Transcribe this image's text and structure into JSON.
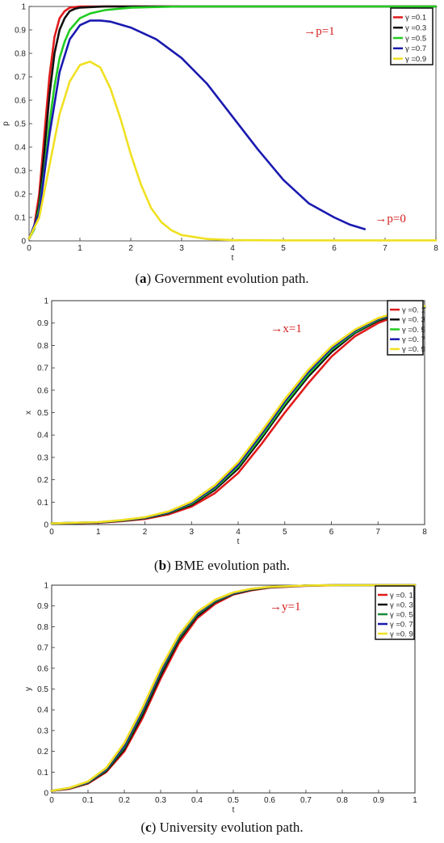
{
  "panels": [
    {
      "id": "a",
      "caption_letter": "a",
      "caption_text": " Government evolution path.",
      "chart_data": {
        "type": "line",
        "xlabel": "t",
        "ylabel": "p",
        "xlim": [
          0,
          8
        ],
        "ylim": [
          0,
          1
        ],
        "xticks": [
          "0",
          "1",
          "2",
          "3",
          "4",
          "5",
          "6",
          "7",
          "8"
        ],
        "yticks": [
          "0",
          "0.1",
          "0.2",
          "0.3",
          "0.4",
          "0.5",
          "0.6",
          "0.7",
          "0.8",
          "0.9",
          "1"
        ],
        "legend_position": "top-right",
        "annotations": [
          {
            "text": "→p=1",
            "x": 5.4,
            "y": 0.88
          },
          {
            "text": "→p=0",
            "x": 6.8,
            "y": 0.08
          }
        ],
        "series": [
          {
            "name": "γ =0.1",
            "color": "#e01b1b",
            "x": [
              0,
              0.1,
              0.2,
              0.3,
              0.4,
              0.5,
              0.6,
              0.7,
              0.8,
              1.0,
              1.5,
              2,
              4,
              8
            ],
            "y": [
              0.01,
              0.06,
              0.2,
              0.45,
              0.7,
              0.87,
              0.95,
              0.98,
              0.995,
              1,
              1,
              1,
              1,
              1
            ]
          },
          {
            "name": "γ =0.3",
            "color": "#111111",
            "x": [
              0,
              0.1,
              0.2,
              0.3,
              0.4,
              0.5,
              0.6,
              0.7,
              0.8,
              0.9,
              1.0,
              1.5,
              2,
              4,
              8
            ],
            "y": [
              0.01,
              0.05,
              0.16,
              0.38,
              0.62,
              0.8,
              0.9,
              0.95,
              0.98,
              0.99,
              0.995,
              1,
              1,
              1,
              1
            ]
          },
          {
            "name": "γ =0.5",
            "color": "#22cc22",
            "x": [
              0,
              0.1,
              0.2,
              0.3,
              0.4,
              0.5,
              0.6,
              0.7,
              0.8,
              1.0,
              1.2,
              1.5,
              2,
              3,
              4,
              8
            ],
            "y": [
              0.01,
              0.05,
              0.14,
              0.3,
              0.5,
              0.66,
              0.78,
              0.85,
              0.9,
              0.95,
              0.97,
              0.985,
              0.995,
              1,
              1,
              1
            ]
          },
          {
            "name": "γ =0.7",
            "color": "#1a1ab0",
            "x": [
              0,
              0.2,
              0.4,
              0.6,
              0.8,
              1.0,
              1.2,
              1.4,
              1.6,
              2.0,
              2.5,
              3.0,
              3.5,
              4.0,
              4.5,
              5.0,
              5.5,
              6.0,
              6.3,
              6.6
            ],
            "y": [
              0.01,
              0.12,
              0.45,
              0.72,
              0.86,
              0.92,
              0.94,
              0.94,
              0.935,
              0.91,
              0.86,
              0.78,
              0.67,
              0.53,
              0.39,
              0.26,
              0.16,
              0.1,
              0.07,
              0.05
            ]
          },
          {
            "name": "γ =0.9",
            "color": "#f0e020",
            "x": [
              0,
              0.2,
              0.4,
              0.6,
              0.8,
              1.0,
              1.2,
              1.4,
              1.6,
              1.8,
              2.0,
              2.2,
              2.4,
              2.6,
              2.8,
              3.0,
              3.5,
              4.0,
              5,
              8
            ],
            "y": [
              0.01,
              0.1,
              0.32,
              0.54,
              0.68,
              0.75,
              0.765,
              0.74,
              0.65,
              0.52,
              0.37,
              0.24,
              0.14,
              0.08,
              0.045,
              0.025,
              0.008,
              0.003,
              0.002,
              0.002
            ]
          }
        ]
      }
    },
    {
      "id": "b",
      "caption_letter": "b",
      "caption_text": " BME evolution path.",
      "chart_data": {
        "type": "line",
        "xlabel": "t",
        "ylabel": "x",
        "xlim": [
          0,
          8
        ],
        "ylim": [
          0,
          1
        ],
        "xticks": [
          "0",
          "1",
          "2",
          "3",
          "4",
          "5",
          "6",
          "7",
          "8"
        ],
        "yticks": [
          "0",
          "0.1",
          "0.2",
          "0.3",
          "0.4",
          "0.5",
          "0.6",
          "0.7",
          "0.8",
          "0.9",
          "1"
        ],
        "legend_position": "top-right",
        "annotations": [
          {
            "text": "→x=1",
            "x": 4.7,
            "y": 0.86
          }
        ],
        "series": [
          {
            "name": "γ =0. 1",
            "color": "#e01b1b",
            "x": [
              0,
              1,
              1.5,
              2,
              2.5,
              3,
              3.5,
              4,
              4.5,
              5,
              5.5,
              6,
              6.5,
              7,
              7.5,
              8
            ],
            "y": [
              0.005,
              0.008,
              0.015,
              0.025,
              0.045,
              0.08,
              0.14,
              0.23,
              0.36,
              0.5,
              0.63,
              0.75,
              0.84,
              0.9,
              0.94,
              0.97
            ]
          },
          {
            "name": "γ =0. 3",
            "color": "#111111",
            "x": [
              0,
              1,
              1.5,
              2,
              2.5,
              3,
              3.5,
              4,
              4.5,
              5,
              5.5,
              6,
              6.5,
              7,
              7.5,
              8
            ],
            "y": [
              0.005,
              0.009,
              0.017,
              0.028,
              0.05,
              0.088,
              0.155,
              0.25,
              0.385,
              0.53,
              0.66,
              0.77,
              0.855,
              0.91,
              0.945,
              0.97
            ]
          },
          {
            "name": "γ =0. 5",
            "color": "#22cc22",
            "x": [
              0,
              1,
              1.5,
              2,
              2.5,
              3,
              3.5,
              4,
              4.5,
              5,
              5.5,
              6,
              6.5,
              7,
              7.5,
              8
            ],
            "y": [
              0.005,
              0.01,
              0.018,
              0.03,
              0.053,
              0.093,
              0.162,
              0.26,
              0.395,
              0.54,
              0.67,
              0.78,
              0.86,
              0.915,
              0.948,
              0.972
            ]
          },
          {
            "name": "γ =0. 7",
            "color": "#1a1ab0",
            "x": [
              0,
              1,
              1.5,
              2,
              2.5,
              3,
              3.5,
              4,
              4.5,
              5,
              5.5,
              6,
              6.5,
              7,
              7.5,
              8
            ],
            "y": [
              0.005,
              0.01,
              0.019,
              0.031,
              0.055,
              0.097,
              0.168,
              0.268,
              0.405,
              0.55,
              0.68,
              0.787,
              0.865,
              0.918,
              0.95,
              0.973
            ]
          },
          {
            "name": "γ =0. 9",
            "color": "#f0e020",
            "x": [
              0,
              1,
              1.5,
              2,
              2.5,
              3,
              3.5,
              4,
              4.5,
              5,
              5.5,
              6,
              6.5,
              7,
              7.5,
              8
            ],
            "y": [
              0.005,
              0.011,
              0.02,
              0.033,
              0.058,
              0.102,
              0.175,
              0.278,
              0.415,
              0.56,
              0.69,
              0.795,
              0.87,
              0.922,
              0.953,
              0.975
            ]
          }
        ]
      }
    },
    {
      "id": "c",
      "caption_letter": "c",
      "caption_text": " University evolution path.",
      "chart_data": {
        "type": "line",
        "xlabel": "t",
        "ylabel": "y",
        "xlim": [
          0,
          1
        ],
        "ylim": [
          0,
          1
        ],
        "xticks": [
          "0",
          "0.1",
          "0.2",
          "0.3",
          "0.4",
          "0.5",
          "0.6",
          "0.7",
          "0.8",
          "0.9",
          "1"
        ],
        "yticks": [
          "0",
          "0.1",
          "0.2",
          "0.3",
          "0.4",
          "0.5",
          "0.6",
          "0.7",
          "0.8",
          "0.9",
          "1"
        ],
        "legend_position": "top-right",
        "annotations": [
          {
            "text": "→y=1",
            "x": 0.6,
            "y": 0.88
          }
        ],
        "series": [
          {
            "name": "γ =0. 1",
            "color": "#e01b1b",
            "x": [
              0,
              0.05,
              0.1,
              0.15,
              0.2,
              0.25,
              0.3,
              0.35,
              0.4,
              0.45,
              0.5,
              0.55,
              0.6,
              0.7,
              0.8,
              1.0
            ],
            "y": [
              0.01,
              0.02,
              0.045,
              0.1,
              0.2,
              0.36,
              0.55,
              0.72,
              0.84,
              0.91,
              0.955,
              0.975,
              0.988,
              0.997,
              1,
              1
            ]
          },
          {
            "name": "γ =0. 3",
            "color": "#111111",
            "x": [
              0,
              0.05,
              0.1,
              0.15,
              0.2,
              0.25,
              0.3,
              0.35,
              0.4,
              0.45,
              0.5,
              0.55,
              0.6,
              0.7,
              0.8,
              1.0
            ],
            "y": [
              0.01,
              0.022,
              0.048,
              0.105,
              0.21,
              0.375,
              0.565,
              0.735,
              0.85,
              0.918,
              0.958,
              0.978,
              0.99,
              0.998,
              1,
              1
            ]
          },
          {
            "name": "γ =0. 5",
            "color": "#1a8a3a",
            "x": [
              0,
              0.05,
              0.1,
              0.15,
              0.2,
              0.25,
              0.3,
              0.35,
              0.4,
              0.45,
              0.5,
              0.55,
              0.6,
              0.7,
              0.8,
              1.0
            ],
            "y": [
              0.01,
              0.023,
              0.05,
              0.11,
              0.22,
              0.39,
              0.58,
              0.745,
              0.858,
              0.922,
              0.96,
              0.98,
              0.99,
              0.998,
              1,
              1
            ]
          },
          {
            "name": "γ =0. 7",
            "color": "#1a1ab0",
            "x": [
              0,
              0.05,
              0.1,
              0.15,
              0.2,
              0.25,
              0.3,
              0.35,
              0.4,
              0.45,
              0.5,
              0.55,
              0.6,
              0.7,
              0.8,
              1.0
            ],
            "y": [
              0.01,
              0.024,
              0.052,
              0.115,
              0.23,
              0.4,
              0.59,
              0.755,
              0.865,
              0.927,
              0.962,
              0.982,
              0.991,
              0.998,
              1,
              1
            ]
          },
          {
            "name": "γ =0. 9",
            "color": "#f0e020",
            "x": [
              0,
              0.05,
              0.1,
              0.15,
              0.2,
              0.25,
              0.3,
              0.35,
              0.4,
              0.45,
              0.5,
              0.55,
              0.6,
              0.7,
              0.8,
              1.0
            ],
            "y": [
              0.01,
              0.025,
              0.055,
              0.12,
              0.24,
              0.41,
              0.6,
              0.76,
              0.87,
              0.93,
              0.965,
              0.983,
              0.992,
              0.998,
              1,
              1
            ]
          }
        ]
      }
    }
  ]
}
